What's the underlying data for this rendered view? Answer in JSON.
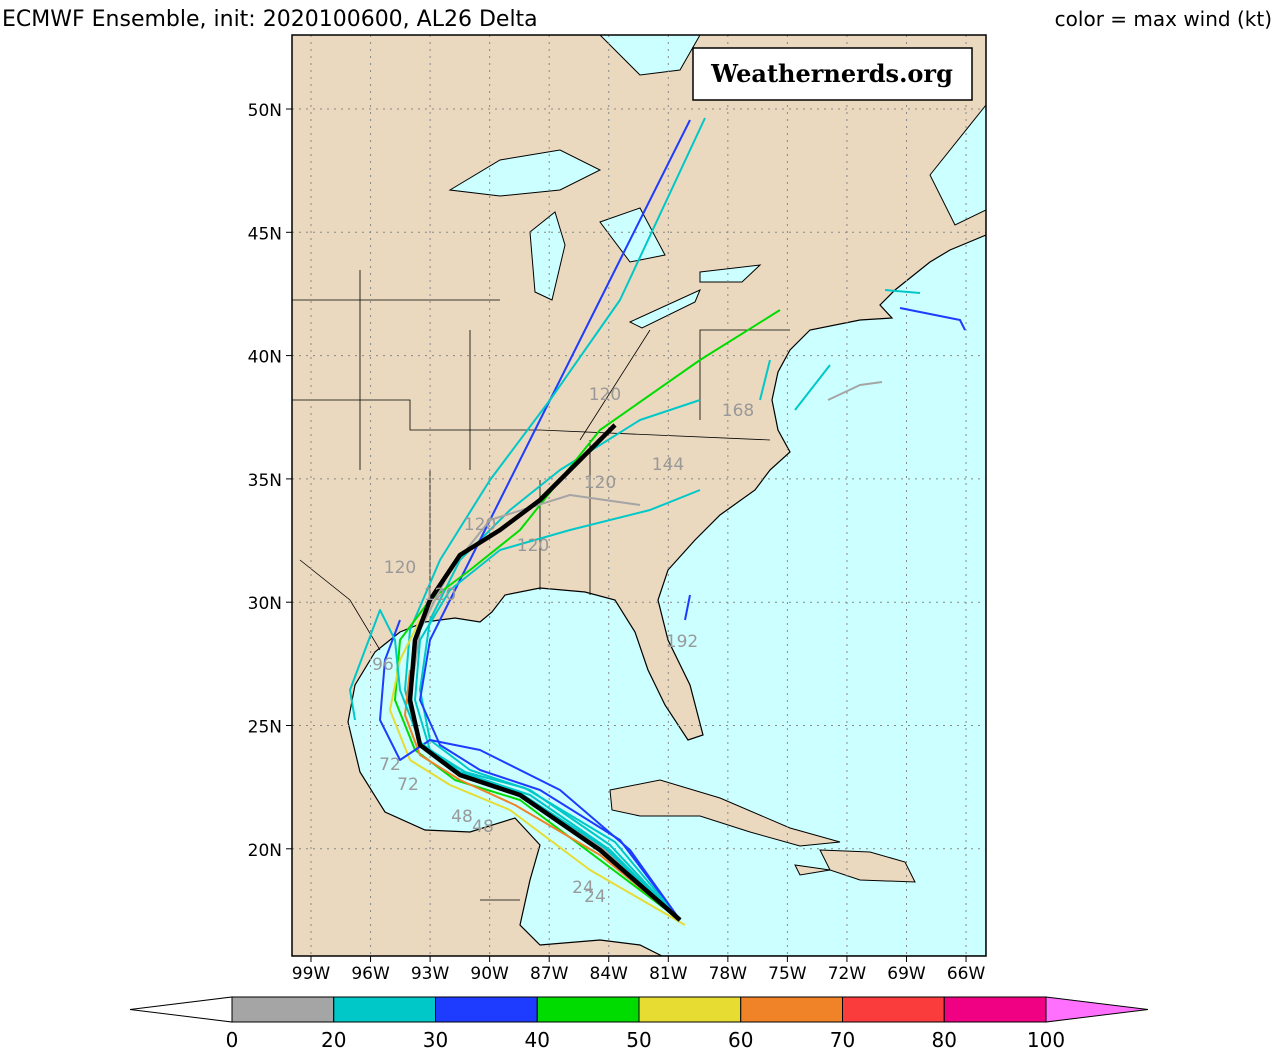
{
  "header": {
    "title": "ECMWF Ensemble, init: 2020100600, AL26 Delta",
    "legend_note": "color = max wind (kt)"
  },
  "watermark": "Weathernerds.org",
  "lat_labels": [
    "50N",
    "45N",
    "40N",
    "35N",
    "30N",
    "25N",
    "20N"
  ],
  "lon_labels": [
    "99W",
    "96W",
    "93W",
    "90W",
    "87W",
    "84W",
    "81W",
    "78W",
    "75W",
    "72W",
    "69W",
    "66W"
  ],
  "colorbar": {
    "ticks": [
      "0",
      "20",
      "30",
      "40",
      "50",
      "60",
      "70",
      "80",
      "100"
    ],
    "colors": [
      "#a5a5a5",
      "#00c8c8",
      "#1e3cff",
      "#00dc00",
      "#e6dc32",
      "#f08228",
      "#fa3c3c",
      "#f00082",
      "#ff70ff"
    ]
  },
  "hour_labels": [
    "120",
    "144",
    "168",
    "120",
    "120",
    "120",
    "120",
    "120",
    "96",
    "72",
    "72",
    "48",
    "48",
    "24",
    "24",
    "192"
  ]
}
